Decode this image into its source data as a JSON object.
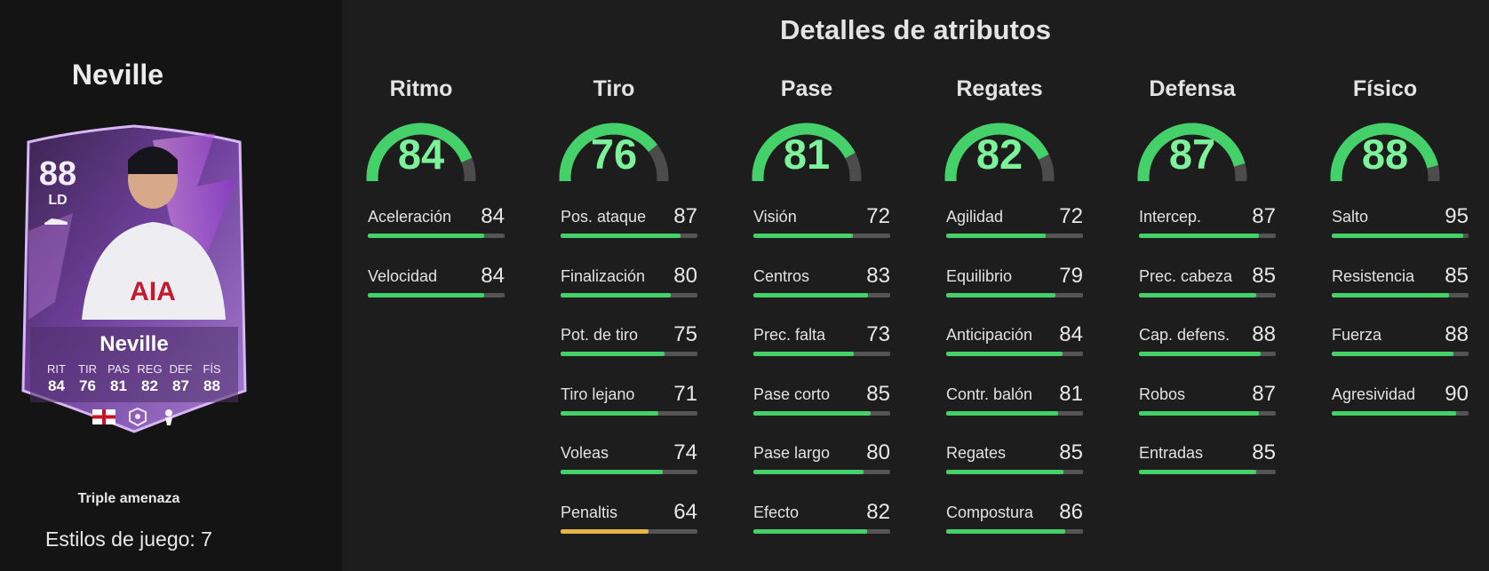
{
  "player": {
    "name": "Neville",
    "rating": "88",
    "position": "LD",
    "card_stats": [
      {
        "label": "RIT",
        "value": "84"
      },
      {
        "label": "TIR",
        "value": "76"
      },
      {
        "label": "PAS",
        "value": "81"
      },
      {
        "label": "REG",
        "value": "82"
      },
      {
        "label": "DEF",
        "value": "87"
      },
      {
        "label": "FÍS",
        "value": "88"
      }
    ],
    "sponsor_logo": "AIA",
    "playstyle": "Triple amenaza",
    "playstyles_count": "Estilos de juego: 7"
  },
  "title": "Detalles de atributos",
  "colors": {
    "green": "#45d169",
    "green_text": "#7cf39a",
    "yellow": "#e6b843",
    "track": "#545454",
    "card_purple": "#8d5bc2"
  },
  "categories": [
    {
      "name": "Ritmo",
      "value": "84",
      "attrs": [
        {
          "name": "Aceleración",
          "value": "84"
        },
        {
          "name": "Velocidad",
          "value": "84"
        }
      ]
    },
    {
      "name": "Tiro",
      "value": "76",
      "attrs": [
        {
          "name": "Pos. ataque",
          "value": "87"
        },
        {
          "name": "Finalización",
          "value": "80"
        },
        {
          "name": "Pot. de tiro",
          "value": "75"
        },
        {
          "name": "Tiro lejano",
          "value": "71"
        },
        {
          "name": "Voleas",
          "value": "74"
        },
        {
          "name": "Penaltis",
          "value": "64"
        }
      ]
    },
    {
      "name": "Pase",
      "value": "81",
      "attrs": [
        {
          "name": "Visión",
          "value": "72"
        },
        {
          "name": "Centros",
          "value": "83"
        },
        {
          "name": "Prec. falta",
          "value": "73"
        },
        {
          "name": "Pase corto",
          "value": "85"
        },
        {
          "name": "Pase largo",
          "value": "80"
        },
        {
          "name": "Efecto",
          "value": "82"
        }
      ]
    },
    {
      "name": "Regates",
      "value": "82",
      "attrs": [
        {
          "name": "Agilidad",
          "value": "72"
        },
        {
          "name": "Equilibrio",
          "value": "79"
        },
        {
          "name": "Anticipación",
          "value": "84"
        },
        {
          "name": "Contr. balón",
          "value": "81"
        },
        {
          "name": "Regates",
          "value": "85"
        },
        {
          "name": "Compostura",
          "value": "86"
        }
      ]
    },
    {
      "name": "Defensa",
      "value": "87",
      "attrs": [
        {
          "name": "Intercep.",
          "value": "87"
        },
        {
          "name": "Prec. cabeza",
          "value": "85"
        },
        {
          "name": "Cap. defens.",
          "value": "88"
        },
        {
          "name": "Robos",
          "value": "87"
        },
        {
          "name": "Entradas",
          "value": "85"
        }
      ]
    },
    {
      "name": "Físico",
      "value": "88",
      "attrs": [
        {
          "name": "Salto",
          "value": "95"
        },
        {
          "name": "Resistencia",
          "value": "85"
        },
        {
          "name": "Fuerza",
          "value": "88"
        },
        {
          "name": "Agresividad",
          "value": "90"
        }
      ]
    }
  ]
}
